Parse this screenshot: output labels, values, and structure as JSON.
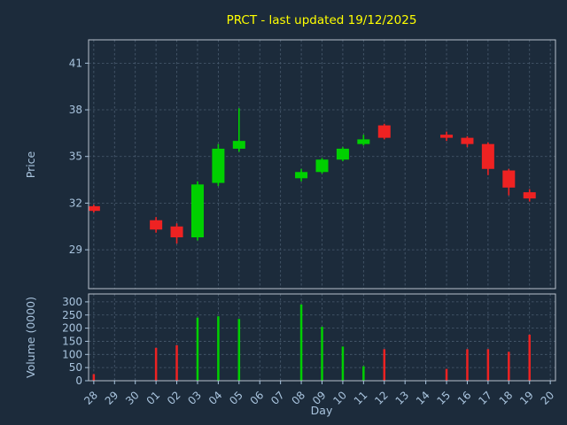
{
  "title": "PRCT - last updated 19/12/2025",
  "axes": {
    "price_label": "Price",
    "volume_label": "Volume (0000)",
    "day_label": "Day"
  },
  "colors": {
    "background": "#1c2b3b",
    "title": "#ffff00",
    "label": "#a9c4de",
    "grid": "#4a5c70",
    "spine": "#b9c2cc",
    "up": "#00d000",
    "down": "#ee2222"
  },
  "chart_data": [
    {
      "type": "candlestick",
      "title": "PRCT - last updated 19/12/2025",
      "ylabel": "Price",
      "xlabel": "Day",
      "ylim": [
        26.5,
        42.5
      ],
      "yticks": [
        29,
        32,
        35,
        38,
        41
      ],
      "grid": true,
      "categories": [
        "28",
        "29",
        "30",
        "01",
        "02",
        "03",
        "04",
        "05",
        "06",
        "07",
        "08",
        "09",
        "10",
        "11",
        "12",
        "13",
        "14",
        "15",
        "16",
        "17",
        "18",
        "19",
        "20"
      ],
      "series": [
        {
          "x": 0,
          "day": "28",
          "open": 31.8,
          "high": 31.9,
          "low": 31.4,
          "close": 31.5
        },
        {
          "x": 3,
          "day": "01",
          "open": 30.9,
          "high": 31.1,
          "low": 30.1,
          "close": 30.3
        },
        {
          "x": 4,
          "day": "02",
          "open": 30.5,
          "high": 30.7,
          "low": 29.4,
          "close": 29.8
        },
        {
          "x": 5,
          "day": "03",
          "open": 29.8,
          "high": 33.4,
          "low": 29.6,
          "close": 33.2
        },
        {
          "x": 6,
          "day": "04",
          "open": 33.3,
          "high": 35.8,
          "low": 33.1,
          "close": 35.5
        },
        {
          "x": 7,
          "day": "05",
          "open": 35.5,
          "high": 38.1,
          "low": 35.3,
          "close": 36.0
        },
        {
          "x": 10,
          "day": "08",
          "open": 33.6,
          "high": 34.2,
          "low": 33.4,
          "close": 34.0
        },
        {
          "x": 11,
          "day": "09",
          "open": 34.0,
          "high": 34.9,
          "low": 33.9,
          "close": 34.8
        },
        {
          "x": 12,
          "day": "10",
          "open": 34.8,
          "high": 35.6,
          "low": 34.7,
          "close": 35.5
        },
        {
          "x": 13,
          "day": "11",
          "open": 35.8,
          "high": 36.4,
          "low": 35.7,
          "close": 36.1
        },
        {
          "x": 14,
          "day": "12",
          "open": 37.0,
          "high": 37.1,
          "low": 36.1,
          "close": 36.2
        },
        {
          "x": 17,
          "day": "15",
          "open": 36.4,
          "high": 36.6,
          "low": 36.0,
          "close": 36.2
        },
        {
          "x": 18,
          "day": "16",
          "open": 36.2,
          "high": 36.3,
          "low": 35.6,
          "close": 35.8
        },
        {
          "x": 19,
          "day": "17",
          "open": 35.8,
          "high": 35.9,
          "low": 33.8,
          "close": 34.2
        },
        {
          "x": 20,
          "day": "18",
          "open": 34.1,
          "high": 34.2,
          "low": 32.5,
          "close": 33.0
        },
        {
          "x": 21,
          "day": "19",
          "open": 32.7,
          "high": 32.9,
          "low": 32.1,
          "close": 32.3
        }
      ]
    },
    {
      "type": "bar",
      "ylabel": "Volume (0000)",
      "ylim": [
        0,
        330
      ],
      "yticks": [
        0,
        50,
        100,
        150,
        200,
        250,
        300
      ],
      "grid": true,
      "x_shared_with_chart": 0,
      "series": [
        {
          "x": 0,
          "day": "28",
          "value": 25,
          "direction": "down"
        },
        {
          "x": 3,
          "day": "01",
          "value": 125,
          "direction": "down"
        },
        {
          "x": 4,
          "day": "02",
          "value": 135,
          "direction": "down"
        },
        {
          "x": 5,
          "day": "03",
          "value": 240,
          "direction": "up"
        },
        {
          "x": 6,
          "day": "04",
          "value": 245,
          "direction": "up"
        },
        {
          "x": 7,
          "day": "05",
          "value": 235,
          "direction": "up"
        },
        {
          "x": 10,
          "day": "08",
          "value": 290,
          "direction": "up"
        },
        {
          "x": 11,
          "day": "09",
          "value": 205,
          "direction": "up"
        },
        {
          "x": 12,
          "day": "10",
          "value": 130,
          "direction": "up"
        },
        {
          "x": 13,
          "day": "11",
          "value": 55,
          "direction": "up"
        },
        {
          "x": 14,
          "day": "12",
          "value": 120,
          "direction": "down"
        },
        {
          "x": 17,
          "day": "15",
          "value": 45,
          "direction": "down"
        },
        {
          "x": 18,
          "day": "16",
          "value": 120,
          "direction": "down"
        },
        {
          "x": 19,
          "day": "17",
          "value": 120,
          "direction": "down"
        },
        {
          "x": 20,
          "day": "18",
          "value": 110,
          "direction": "down"
        },
        {
          "x": 21,
          "day": "19",
          "value": 175,
          "direction": "down"
        }
      ]
    }
  ]
}
